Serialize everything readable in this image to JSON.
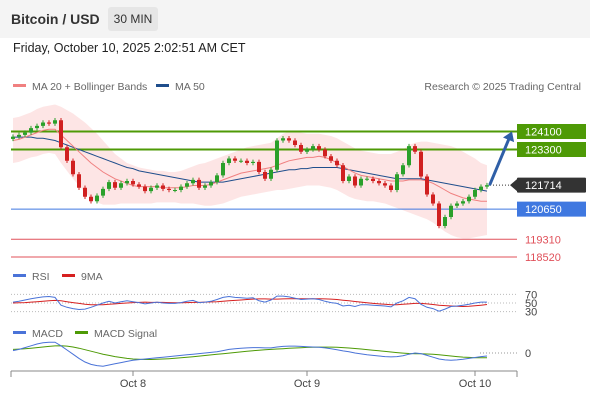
{
  "header": {
    "title": "Bitcoin / USD",
    "timeframe": "30 MIN",
    "datetime": "Friday, October 10, 2025 2:02:51 AM CET"
  },
  "legend": {
    "ma20_label": "MA 20 + Bollinger Bands",
    "ma50_label": "MA 50",
    "research": "Research © 2025 Trading Central",
    "rsi_label": "RSI",
    "rsi_ma_label": "9MA",
    "macd_label": "MACD",
    "macd_signal_label": "MACD Signal"
  },
  "colors": {
    "bullish_level": "#4e9a06",
    "pivot_level": "#3f78e0",
    "bearish_level": "#e0505a",
    "current_price": "#333333",
    "ma20": "#f08080",
    "ma50": "#1f4e8c",
    "bollinger_fill": "#fde0e0",
    "rsi": "#4a73d8",
    "rsi_ma": "#d62020",
    "macd": "#4a73d8",
    "macd_signal": "#4e9a06",
    "candle_up": "#2aa02a",
    "candle_down": "#d02020"
  },
  "chart_data": {
    "type": "candlestick",
    "instrument": "Bitcoin / USD",
    "interval": "30 MIN",
    "x_tick_labels": [
      "Oct 8",
      "Oct 9",
      "Oct 10"
    ],
    "y_range": [
      118300,
      124700
    ],
    "current_price": 121714,
    "levels": [
      {
        "value": 124100,
        "label": "124100",
        "kind": "resistance"
      },
      {
        "value": 123300,
        "label": "123300",
        "kind": "resistance"
      },
      {
        "value": 120650,
        "label": "120650",
        "kind": "pivot"
      },
      {
        "value": 119310,
        "label": "119310",
        "kind": "support"
      },
      {
        "value": 118520,
        "label": "118520",
        "kind": "support"
      }
    ],
    "forecast_arrow": {
      "from": 121714,
      "to": 124100,
      "direction": "up"
    },
    "close": [
      123870,
      123950,
      124050,
      124250,
      124350,
      124500,
      124450,
      124600,
      123400,
      122800,
      122200,
      121600,
      121200,
      121000,
      121250,
      121550,
      121850,
      121600,
      121800,
      121900,
      121750,
      121650,
      121450,
      121600,
      121700,
      121550,
      121500,
      121500,
      121650,
      121800,
      121950,
      121600,
      121700,
      121850,
      122150,
      122700,
      122900,
      122800,
      122800,
      122700,
      122750,
      122300,
      122000,
      122400,
      123700,
      123800,
      123700,
      123500,
      123200,
      123300,
      123450,
      123300,
      123000,
      122800,
      122600,
      121900,
      122100,
      121700,
      122000,
      122000,
      121900,
      121800,
      121700,
      121500,
      122200,
      122600,
      123450,
      123200,
      122100,
      121300,
      120900,
      119900,
      120300,
      120800,
      120900,
      121000,
      121200,
      121500,
      121650,
      121714
    ],
    "ma20": [
      123700,
      123750,
      123850,
      123950,
      124050,
      124150,
      124200,
      124200,
      123950,
      123700,
      123450,
      123200,
      122950,
      122700,
      122500,
      122300,
      122150,
      122000,
      121900,
      121800,
      121700,
      121650,
      121650,
      121650,
      121650,
      121600,
      121600,
      121600,
      121600,
      121650,
      121700,
      121700,
      121700,
      121750,
      121850,
      121950,
      122050,
      122150,
      122250,
      122300,
      122350,
      122400,
      122450,
      122500,
      122600,
      122700,
      122800,
      122850,
      122900,
      122950,
      122950,
      123000,
      122950,
      122850,
      122700,
      122550,
      122400,
      122250,
      122150,
      122100,
      122050,
      122000,
      121950,
      121900,
      121900,
      121900,
      121950,
      121950,
      121950,
      121900,
      121800,
      121650,
      121500,
      121350,
      121250,
      121150,
      121100,
      121050,
      121000,
      121000
    ],
    "ma50": [
      123850,
      123850,
      123850,
      123850,
      123800,
      123800,
      123750,
      123700,
      123600,
      123500,
      123400,
      123300,
      123200,
      123100,
      123000,
      122900,
      122800,
      122700,
      122600,
      122500,
      122450,
      122350,
      122300,
      122250,
      122200,
      122150,
      122100,
      122050,
      122000,
      121950,
      121900,
      121850,
      121850,
      121850,
      121850,
      121850,
      121900,
      121950,
      122000,
      122050,
      122100,
      122150,
      122200,
      122250,
      122300,
      122350,
      122400,
      122400,
      122450,
      122450,
      122500,
      122500,
      122500,
      122500,
      122500,
      122450,
      122400,
      122350,
      122300,
      122250,
      122200,
      122150,
      122100,
      122050,
      122000,
      122000,
      122000,
      122000,
      122000,
      121950,
      121900,
      121850,
      121800,
      121750,
      121700,
      121650,
      121600,
      121550,
      121500,
      121450
    ],
    "bollinger_upper": [
      124700,
      124750,
      124850,
      124950,
      125100,
      125200,
      125250,
      125300,
      125200,
      125050,
      124900,
      124700,
      124500,
      124250,
      124000,
      123700,
      123400,
      123100,
      122900,
      122700,
      122600,
      122500,
      122450,
      122400,
      122350,
      122350,
      122300,
      122300,
      122350,
      122450,
      122550,
      122650,
      122700,
      122800,
      122900,
      123000,
      123100,
      123200,
      123300,
      123400,
      123450,
      123500,
      123550,
      123600,
      123800,
      124000,
      124100,
      124100,
      124050,
      124000,
      124000,
      124000,
      123950,
      123900,
      123800,
      123650,
      123500,
      123350,
      123250,
      123200,
      123150,
      123100,
      123100,
      123100,
      123200,
      123300,
      123500,
      123600,
      123650,
      123650,
      123600,
      123550,
      123500,
      123450,
      123350,
      123200,
      123050,
      122900,
      122700,
      122600
    ],
    "bollinger_lower": [
      122700,
      122750,
      122850,
      122950,
      123000,
      123100,
      123150,
      123100,
      122700,
      122350,
      122000,
      121700,
      121400,
      121150,
      120950,
      120850,
      120850,
      120850,
      120900,
      120900,
      120900,
      120900,
      120900,
      120900,
      120950,
      120950,
      120950,
      120950,
      120900,
      120900,
      120900,
      120850,
      120800,
      120800,
      120850,
      120900,
      121000,
      121100,
      121200,
      121250,
      121300,
      121350,
      121400,
      121450,
      121500,
      121500,
      121550,
      121600,
      121650,
      121700,
      121700,
      121700,
      121650,
      121600,
      121500,
      121350,
      121200,
      121100,
      121050,
      121000,
      121000,
      120950,
      120900,
      120800,
      120700,
      120600,
      120500,
      120400,
      120300,
      120200,
      120050,
      119850,
      119650,
      119500,
      119400,
      119350,
      119350,
      119400,
      119450,
      119500
    ],
    "rsi": {
      "levels": [
        70,
        50,
        30
      ],
      "rsi": [
        52,
        54,
        57,
        60,
        62,
        64,
        65,
        63,
        45,
        40,
        37,
        35,
        36,
        40,
        45,
        50,
        54,
        50,
        53,
        55,
        53,
        51,
        48,
        50,
        52,
        50,
        49,
        49,
        51,
        54,
        56,
        51,
        52,
        54,
        58,
        63,
        65,
        63,
        62,
        61,
        62,
        55,
        52,
        57,
        66,
        66,
        64,
        61,
        58,
        59,
        60,
        58,
        54,
        51,
        49,
        43,
        45,
        42,
        46,
        46,
        45,
        44,
        43,
        41,
        50,
        55,
        63,
        60,
        47,
        40,
        37,
        31,
        36,
        42,
        43,
        45,
        47,
        50,
        52,
        52
      ],
      "ma9": [
        50,
        50.5,
        51,
        52,
        53,
        54,
        55,
        56,
        55,
        53,
        51,
        49,
        47,
        46,
        46,
        46,
        47,
        48,
        49,
        50,
        51,
        51.5,
        52,
        51.5,
        51.5,
        51.5,
        51,
        50.5,
        50.5,
        51,
        51.5,
        51.5,
        52,
        52.5,
        53,
        54,
        55,
        56,
        57,
        58,
        59,
        59.5,
        59.5,
        59,
        59,
        59.5,
        60,
        60,
        60,
        60,
        60,
        60,
        59.5,
        59,
        58,
        56.5,
        55,
        53.5,
        52,
        50.5,
        49,
        48,
        47,
        46,
        46,
        47,
        48,
        49,
        49,
        48,
        46.5,
        45,
        44,
        43,
        42.5,
        42,
        42.5,
        43.5,
        45,
        46.5
      ]
    },
    "macd": {
      "levels": [
        0
      ],
      "macd": [
        40,
        60,
        90,
        120,
        150,
        170,
        180,
        180,
        120,
        50,
        -20,
        -90,
        -150,
        -190,
        -210,
        -220,
        -200,
        -180,
        -160,
        -140,
        -120,
        -110,
        -100,
        -90,
        -80,
        -70,
        -60,
        -50,
        -40,
        -30,
        -20,
        -10,
        0,
        10,
        20,
        40,
        60,
        70,
        80,
        85,
        90,
        90,
        85,
        85,
        100,
        110,
        115,
        115,
        110,
        105,
        100,
        95,
        85,
        70,
        55,
        35,
        20,
        0,
        -15,
        -30,
        -40,
        -50,
        -60,
        -65,
        -60,
        -45,
        -20,
        0,
        -10,
        -40,
        -70,
        -100,
        -115,
        -120,
        -115,
        -105,
        -90,
        -75,
        -60,
        -50
      ],
      "signal": [
        60,
        65,
        72,
        80,
        90,
        100,
        110,
        118,
        122,
        115,
        100,
        80,
        55,
        30,
        5,
        -20,
        -40,
        -60,
        -75,
        -90,
        -100,
        -105,
        -108,
        -108,
        -105,
        -100,
        -95,
        -88,
        -80,
        -72,
        -62,
        -52,
        -42,
        -32,
        -22,
        -12,
        -2,
        8,
        18,
        28,
        38,
        46,
        54,
        60,
        66,
        72,
        78,
        84,
        89,
        93,
        96,
        98,
        99,
        98,
        95,
        90,
        83,
        75,
        66,
        56,
        46,
        36,
        26,
        16,
        6,
        -2,
        -8,
        -12,
        -14,
        -17,
        -22,
        -30,
        -40,
        -50,
        -60,
        -68,
        -74,
        -78,
        -80,
        -80
      ]
    }
  }
}
